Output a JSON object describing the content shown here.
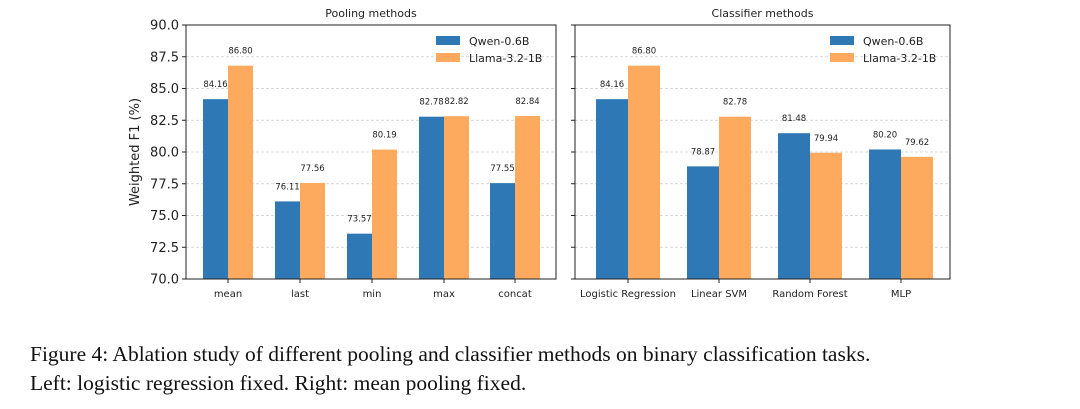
{
  "chart_data": [
    {
      "type": "bar",
      "title": "Pooling methods",
      "ylabel": "Weighted F1 (%)",
      "xlabel": "",
      "ylim": [
        70,
        90
      ],
      "yticks": [
        "70.0",
        "72.5",
        "75.0",
        "77.5",
        "80.0",
        "82.5",
        "85.0",
        "87.5",
        "90.0"
      ],
      "grid": "y-dashed",
      "legend": "top-right",
      "categories": [
        "mean",
        "last",
        "min",
        "max",
        "concat"
      ],
      "series": [
        {
          "name": "Qwen-0.6B",
          "color": "#2e78b5",
          "values": [
            84.16,
            76.11,
            73.57,
            82.78,
            77.55
          ],
          "labels": [
            "84.16",
            "76.11",
            "73.57",
            "82.78",
            "77.55"
          ]
        },
        {
          "name": "Llama-3.2-1B",
          "color": "#fdaa5e",
          "values": [
            86.8,
            77.56,
            80.19,
            82.82,
            82.84
          ],
          "labels": [
            "86.80",
            "77.56",
            "80.19",
            "82.82",
            "82.84"
          ]
        }
      ]
    },
    {
      "type": "bar",
      "title": "Classifier methods",
      "ylim": [
        70,
        90
      ],
      "grid": "y-dashed",
      "legend": "top-right",
      "categories": [
        "Logistic Regression",
        "Linear SVM",
        "Random Forest",
        "MLP"
      ],
      "series": [
        {
          "name": "Qwen-0.6B",
          "color": "#2e78b5",
          "values": [
            84.16,
            78.87,
            81.48,
            80.2
          ],
          "labels": [
            "84.16",
            "78.87",
            "81.48",
            "80.20"
          ]
        },
        {
          "name": "Llama-3.2-1B",
          "color": "#fdaa5e",
          "values": [
            86.8,
            82.78,
            79.94,
            79.62
          ],
          "labels": [
            "86.80",
            "82.78",
            "79.94",
            "79.62"
          ]
        }
      ]
    }
  ],
  "caption": {
    "line1": "Figure 4: Ablation study of different pooling and classifier methods on binary classification tasks.",
    "line2": "Left: logistic regression fixed. Right: mean pooling fixed."
  }
}
